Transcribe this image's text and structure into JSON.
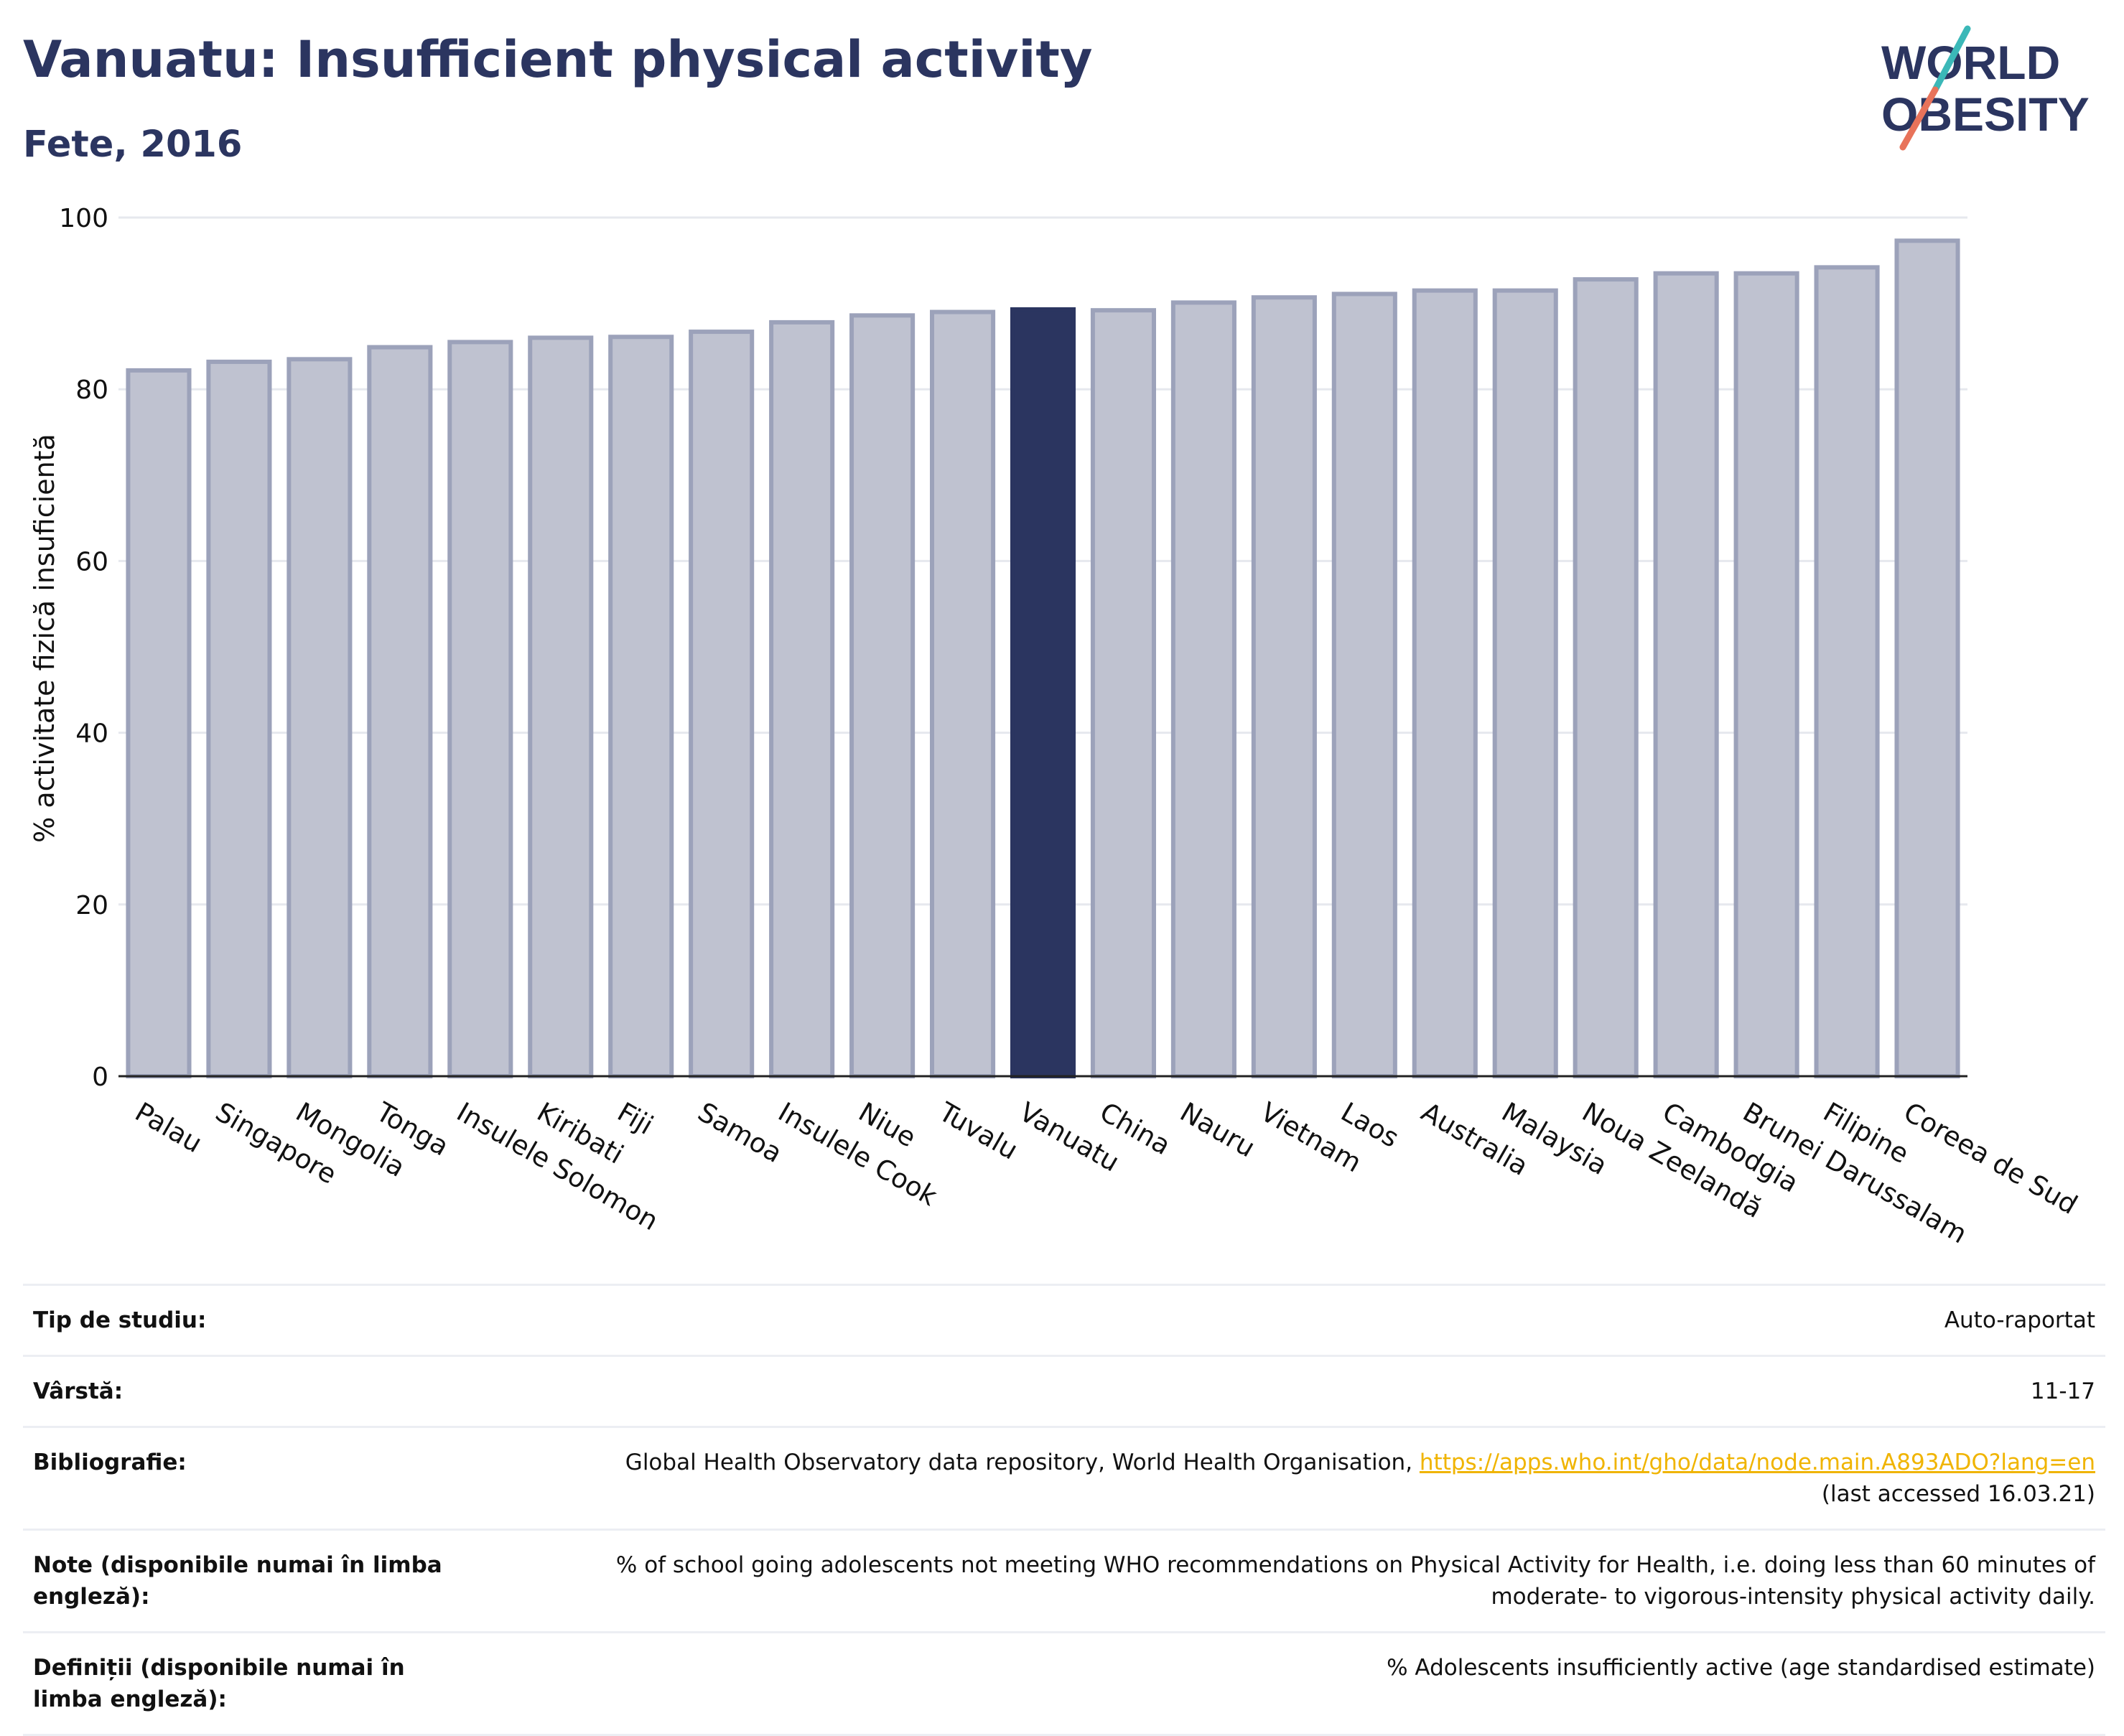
{
  "header": {
    "title": "Vanuatu: Insufficient physical activity",
    "subtitle": "Fete, 2016"
  },
  "logo": {
    "line1": "WORLD",
    "line2": "OBESITY",
    "colors": {
      "text": "#2b3560",
      "slash_top": "#3bb8b8",
      "slash_bottom": "#e8735a"
    }
  },
  "colors": {
    "bar": "#bfc2d0",
    "bar_border": "#9ca2ba",
    "highlight": "#2b3560",
    "grid": "#e6e8ee",
    "axis": "#222222"
  },
  "chart_data": {
    "type": "bar",
    "title": "Vanuatu: Insufficient physical activity",
    "subtitle": "Fete, 2016",
    "xlabel": "",
    "ylabel": "% activitate fizică insuficientă",
    "ylim": [
      0,
      100
    ],
    "yticks": [
      0,
      20,
      40,
      60,
      80,
      100
    ],
    "grid": true,
    "highlight": "Vanuatu",
    "categories": [
      "Palau",
      "Singapore",
      "Mongolia",
      "Tonga",
      "Insulele Solomon",
      "Kiribati",
      "Fiji",
      "Samoa",
      "Insulele Cook",
      "Niue",
      "Tuvalu",
      "Vanuatu",
      "China",
      "Nauru",
      "Vietnam",
      "Laos",
      "Australia",
      "Malaysia",
      "Noua Zeelandă",
      "Cambodgia",
      "Brunei Darussalam",
      "Filipine",
      "Coreea de Sud"
    ],
    "values": [
      82.2,
      83.2,
      83.5,
      84.9,
      85.5,
      86.0,
      86.1,
      86.7,
      87.8,
      88.6,
      89.0,
      89.3,
      89.2,
      90.1,
      90.7,
      91.1,
      91.5,
      91.5,
      92.8,
      93.5,
      93.5,
      94.2,
      97.3
    ]
  },
  "meta": {
    "rows": [
      {
        "label": "Tip de studiu:",
        "value": "Auto-raportat"
      },
      {
        "label": "Vârstă:",
        "value": "11-17"
      },
      {
        "label": "Bibliografie:",
        "value": "Global Health Observatory data repository, World Health Organisation, ",
        "link": "https://apps.who.int/gho/data/node.main.A893ADO?lang=en",
        "value2": "(last accessed 16.03.21)"
      },
      {
        "label": "Note (disponibile numai în limba engleză):",
        "value": "% of school going adolescents not meeting WHO recommendations on Physical Activity for Health, i.e. doing less than 60 minutes of",
        "value2": "moderate- to vigorous-intensity physical activity daily."
      },
      {
        "label": "Definiții (disponibile numai în limba engleză):",
        "value": "% Adolescents insufficiently active (age standardised estimate)"
      }
    ]
  }
}
